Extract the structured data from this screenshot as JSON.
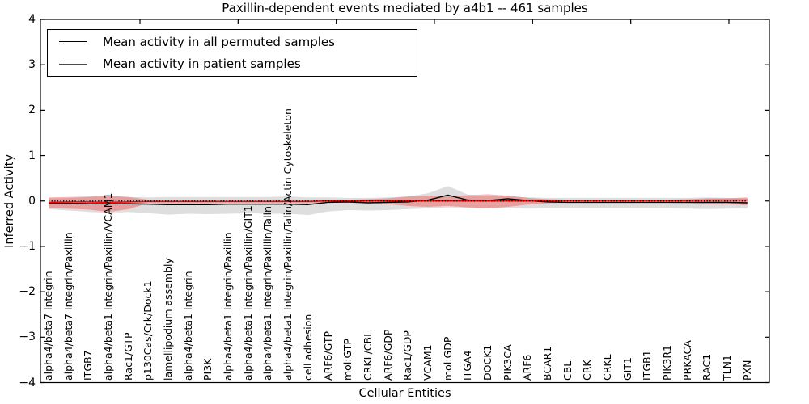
{
  "figure": {
    "title": "Paxillin-dependent events mediated by a4b1 -- 461 samples"
  },
  "axes": {
    "xlabel": "Cellular Entities",
    "ylabel": "Inferred Activity",
    "ytick_labels": [
      "4",
      "3",
      "2",
      "1",
      "0",
      "−1",
      "−2",
      "−3",
      "−4"
    ]
  },
  "legend": {
    "items": [
      {
        "label": "Mean activity in all permuted samples",
        "color": "#000000"
      },
      {
        "label": "Mean activity in patient samples",
        "color": "#ff0000"
      }
    ]
  },
  "chart_data": {
    "type": "line",
    "title": "Paxillin-dependent events mediated by a4b1 -- 461 samples",
    "xlabel": "Cellular Entities",
    "ylabel": "Inferred Activity",
    "ylim": [
      -4,
      4
    ],
    "yticks": [
      4,
      3,
      2,
      1,
      0,
      -1,
      -2,
      -3,
      -4
    ],
    "grid": false,
    "legend_position": "upper left",
    "zero_line": {
      "y": 0,
      "style": "dotted",
      "color": "#000000"
    },
    "categories": [
      "alpha4/beta7 Integrin",
      "alpha4/beta7 Integrin/Paxillin",
      "ITGB7",
      "alpha4/beta1 Integrin/Paxillin/VCAM1",
      "Rac1/GTP",
      "p130Cas/Crk/Dock1",
      "lamellipodium assembly",
      "alpha4/beta1 Integrin",
      "PI3K",
      "alpha4/beta1 Integrin/Paxillin",
      "alpha4/beta1 Integrin/Paxillin/GIT1",
      "alpha4/beta1 Integrin/Paxillin/Talin",
      "alpha4/beta1 Integrin/Paxillin/Talin/Actin Cytoskeleton",
      "cell adhesion",
      "ARF6/GTP",
      "mol:GTP",
      "CRKL/CBL",
      "ARF6/GDP",
      "Rac1/GDP",
      "VCAM1",
      "mol:GDP",
      "ITGA4",
      "DOCK1",
      "PIK3CA",
      "ARF6",
      "BCAR1",
      "CBL",
      "CRK",
      "CRKL",
      "GIT1",
      "ITGB1",
      "PIK3R1",
      "PRKACA",
      "RAC1",
      "TLN1",
      "PXN"
    ],
    "series": [
      {
        "name": "Mean activity in all permuted samples",
        "color": "#000000",
        "line_style": "solid",
        "values": [
          -0.05,
          -0.05,
          -0.06,
          -0.06,
          -0.06,
          -0.07,
          -0.08,
          -0.08,
          -0.08,
          -0.07,
          -0.07,
          -0.07,
          -0.07,
          -0.08,
          -0.03,
          -0.02,
          -0.04,
          -0.03,
          -0.02,
          0.02,
          0.13,
          0.02,
          0.01,
          0.05,
          0.01,
          -0.02,
          -0.03,
          -0.03,
          -0.03,
          -0.03,
          -0.03,
          -0.03,
          -0.03,
          -0.03,
          -0.03,
          -0.04
        ],
        "band": {
          "upper": [
            0.06,
            0.07,
            0.09,
            0.11,
            0.09,
            0.08,
            0.09,
            0.09,
            0.09,
            0.09,
            0.09,
            0.09,
            0.1,
            0.08,
            0.08,
            0.07,
            0.07,
            0.08,
            0.1,
            0.17,
            0.33,
            0.14,
            0.1,
            0.11,
            0.08,
            0.07,
            0.07,
            0.07,
            0.07,
            0.07,
            0.07,
            0.07,
            0.07,
            0.08,
            0.07,
            0.06
          ],
          "lower": [
            -0.18,
            -0.21,
            -0.24,
            -0.26,
            -0.24,
            -0.27,
            -0.3,
            -0.28,
            -0.29,
            -0.28,
            -0.27,
            -0.28,
            -0.28,
            -0.31,
            -0.23,
            -0.2,
            -0.21,
            -0.2,
            -0.18,
            -0.16,
            -0.14,
            -0.15,
            -0.16,
            -0.15,
            -0.17,
            -0.16,
            -0.16,
            -0.16,
            -0.16,
            -0.16,
            -0.16,
            -0.16,
            -0.17,
            -0.18,
            -0.17,
            -0.16
          ],
          "color": "rgba(0,0,0,0.13)"
        }
      },
      {
        "name": "Mean activity in patient samples",
        "color": "#ff0000",
        "line_style": "solid",
        "values": [
          -0.03,
          -0.02,
          -0.02,
          -0.03,
          -0.02,
          -0.01,
          -0.01,
          -0.01,
          -0.01,
          -0.01,
          -0.01,
          -0.01,
          -0.01,
          -0.01,
          0.0,
          0.0,
          0.0,
          0.0,
          0.0,
          0.0,
          0.0,
          0.0,
          0.0,
          0.0,
          0.0,
          0.01,
          0.01,
          0.01,
          0.01,
          0.01,
          0.01,
          0.01,
          0.01,
          0.02,
          0.02,
          0.02
        ],
        "band": {
          "upper": [
            0.08,
            0.09,
            0.1,
            0.12,
            0.09,
            0.03,
            0.03,
            0.03,
            0.03,
            0.03,
            0.03,
            0.03,
            0.03,
            0.03,
            0.03,
            0.03,
            0.04,
            0.06,
            0.1,
            0.12,
            0.1,
            0.13,
            0.15,
            0.12,
            0.07,
            0.04,
            0.03,
            0.03,
            0.03,
            0.03,
            0.03,
            0.03,
            0.04,
            0.06,
            0.06,
            0.08
          ],
          "lower": [
            -0.16,
            -0.17,
            -0.19,
            -0.24,
            -0.18,
            -0.05,
            -0.05,
            -0.05,
            -0.05,
            -0.05,
            -0.05,
            -0.05,
            -0.05,
            -0.05,
            -0.04,
            -0.04,
            -0.05,
            -0.07,
            -0.11,
            -0.13,
            -0.11,
            -0.14,
            -0.16,
            -0.13,
            -0.08,
            -0.05,
            -0.04,
            -0.04,
            -0.04,
            -0.04,
            -0.04,
            -0.04,
            -0.05,
            -0.07,
            -0.07,
            -0.09
          ],
          "color": "rgba(255,0,0,0.28)"
        }
      }
    ]
  }
}
